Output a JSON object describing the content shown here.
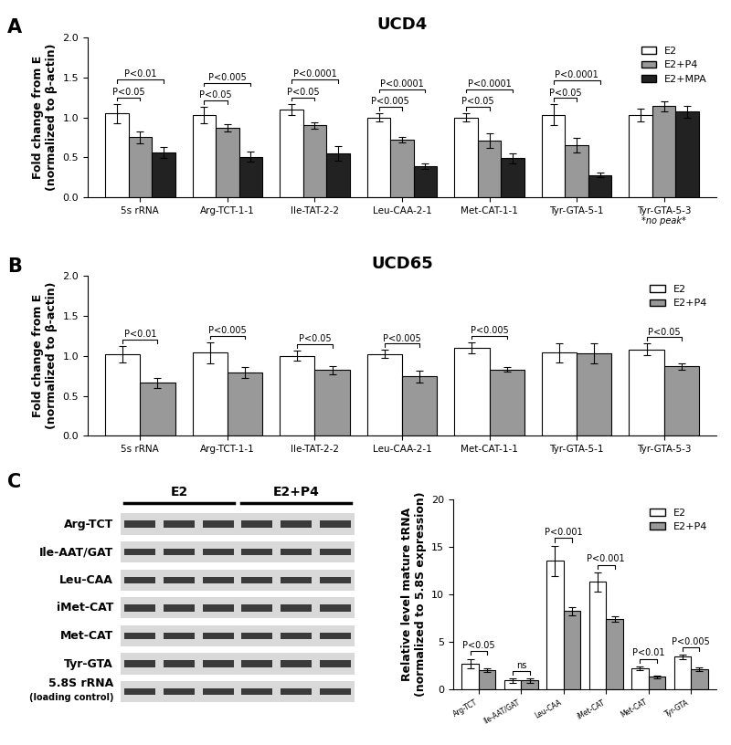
{
  "panel_labels": [
    "A",
    "B",
    "C"
  ],
  "chart_data": [
    {
      "type": "bar",
      "title": "UCD4",
      "ylabel": "Fold change from E\n(normalized to β-actin)",
      "categories": [
        "5s rRNA",
        "Arg-TCT-1-1",
        "Ile-TAT-2-2",
        "Leu-CAA-2-1",
        "Met-CAT-1-1",
        "Tyr-GTA-5-1",
        "Tyr-GTA-5-3"
      ],
      "series": [
        {
          "name": "E2",
          "color": "#ffffff",
          "values": [
            1.05,
            1.03,
            1.1,
            1.0,
            1.0,
            1.03,
            1.03
          ],
          "errors": [
            0.12,
            0.1,
            0.07,
            0.05,
            0.05,
            0.13,
            0.08
          ]
        },
        {
          "name": "E2+P4",
          "color": "#999999",
          "values": [
            0.75,
            0.87,
            0.9,
            0.72,
            0.71,
            0.65,
            1.14
          ],
          "errors": [
            0.07,
            0.05,
            0.04,
            0.03,
            0.09,
            0.09,
            0.06
          ]
        },
        {
          "name": "E2+MPA",
          "color": "#222222",
          "values": [
            0.56,
            0.51,
            0.55,
            0.39,
            0.49,
            0.28,
            1.07
          ],
          "errors": [
            0.07,
            0.06,
            0.09,
            0.03,
            0.06,
            0.03,
            0.07
          ]
        }
      ],
      "ylim": [
        0,
        2.0
      ],
      "yticks": [
        {
          "value": 0,
          "label": "0.0"
        },
        {
          "value": 0.5,
          "label": "0.5"
        },
        {
          "value": 1.0,
          "label": "1.0"
        },
        {
          "value": 1.5,
          "label": "1.5"
        },
        {
          "value": 2.0,
          "label": "2.0"
        }
      ],
      "legend": "upper right",
      "annotations": [
        {
          "category": "5s rRNA",
          "from": "E2",
          "to": "E2+P4",
          "text": "P<0.05"
        },
        {
          "category": "5s rRNA",
          "from": "E2",
          "to": "E2+MPA",
          "text": "P<0.01"
        },
        {
          "category": "Arg-TCT-1-1",
          "from": "E2",
          "to": "E2+P4",
          "text": "P<0.05"
        },
        {
          "category": "Arg-TCT-1-1",
          "from": "E2",
          "to": "E2+MPA",
          "text": "P<0.005"
        },
        {
          "category": "Ile-TAT-2-2",
          "from": "E2",
          "to": "E2+P4",
          "text": "P<0.05"
        },
        {
          "category": "Ile-TAT-2-2",
          "from": "E2",
          "to": "E2+MPA",
          "text": "P<0.0001"
        },
        {
          "category": "Leu-CAA-2-1",
          "from": "E2",
          "to": "E2+P4",
          "text": "P<0.005"
        },
        {
          "category": "Leu-CAA-2-1",
          "from": "E2",
          "to": "E2+MPA",
          "text": "P<0.0001"
        },
        {
          "category": "Met-CAT-1-1",
          "from": "E2",
          "to": "E2+P4",
          "text": "P<0.05"
        },
        {
          "category": "Met-CAT-1-1",
          "from": "E2",
          "to": "E2+MPA",
          "text": "P<0.0001"
        },
        {
          "category": "Tyr-GTA-5-1",
          "from": "E2",
          "to": "E2+P4",
          "text": "P<0.05"
        },
        {
          "category": "Tyr-GTA-5-1",
          "from": "E2",
          "to": "E2+MPA",
          "text": "P<0.0001"
        }
      ],
      "notes": [
        {
          "category": "Tyr-GTA-5-3",
          "text": "*no peak*"
        }
      ]
    },
    {
      "type": "bar",
      "title": "UCD65",
      "ylabel": "Fold change from E\n(normalized to β-actin)",
      "categories": [
        "5s rRNA",
        "Arg-TCT-1-1",
        "Ile-TAT-2-2",
        "Leu-CAA-2-1",
        "Met-CAT-1-1",
        "Tyr-GTA-5-1",
        "Tyr-GTA-5-3"
      ],
      "series": [
        {
          "name": "E2",
          "color": "#ffffff",
          "values": [
            1.02,
            1.04,
            1.0,
            1.02,
            1.1,
            1.04,
            1.08
          ],
          "errors": [
            0.1,
            0.13,
            0.06,
            0.05,
            0.07,
            0.12,
            0.07
          ]
        },
        {
          "name": "E2+P4",
          "color": "#999999",
          "values": [
            0.66,
            0.79,
            0.82,
            0.74,
            0.83,
            1.03,
            0.87
          ],
          "errors": [
            0.06,
            0.07,
            0.05,
            0.07,
            0.03,
            0.12,
            0.04
          ]
        }
      ],
      "ylim": [
        0,
        2.0
      ],
      "yticks": [
        {
          "value": 0,
          "label": "0.0"
        },
        {
          "value": 0.5,
          "label": "0.5"
        },
        {
          "value": 1.0,
          "label": "1.0"
        },
        {
          "value": 1.5,
          "label": "1.5"
        },
        {
          "value": 2.0,
          "label": "2.0"
        }
      ],
      "legend": "upper right",
      "annotations": [
        {
          "category": "5s rRNA",
          "from": "E2",
          "to": "E2+P4",
          "text": "P<0.01"
        },
        {
          "category": "Arg-TCT-1-1",
          "from": "E2",
          "to": "E2+P4",
          "text": "P<0.005"
        },
        {
          "category": "Ile-TAT-2-2",
          "from": "E2",
          "to": "E2+P4",
          "text": "P<0.05"
        },
        {
          "category": "Leu-CAA-2-1",
          "from": "E2",
          "to": "E2+P4",
          "text": "P<0.005"
        },
        {
          "category": "Met-CAT-1-1",
          "from": "E2",
          "to": "E2+P4",
          "text": "P<0.005"
        },
        {
          "category": "Tyr-GTA-5-3",
          "from": "E2",
          "to": "E2+P4",
          "text": "P<0.05"
        }
      ]
    },
    {
      "type": "bar",
      "ylabel": "Relative level mature tRNA\n(normalized to 5.8S expression)",
      "categories": [
        "Arg-TCT",
        "Ile-AAT/GAT",
        "Leu-CAA",
        "iMet-CAT",
        "Met-CAT",
        "Tyr-GTA"
      ],
      "series": [
        {
          "name": "E2",
          "color": "#ffffff",
          "values": [
            2.7,
            0.9,
            13.5,
            11.3,
            2.2,
            3.4
          ],
          "errors": [
            0.5,
            0.2,
            1.6,
            1.0,
            0.2,
            0.2
          ]
        },
        {
          "name": "E2+P4",
          "color": "#999999",
          "values": [
            2.0,
            0.9,
            8.2,
            7.4,
            1.3,
            2.1
          ],
          "errors": [
            0.2,
            0.2,
            0.4,
            0.3,
            0.15,
            0.15
          ]
        }
      ],
      "ylim": [
        0,
        20
      ],
      "yticks": [
        0,
        5,
        10,
        15,
        20
      ],
      "legend": "upper right",
      "annotations": [
        {
          "category": "Arg-TCT",
          "from": "E2",
          "to": "E2+P4",
          "text": "P<0.05"
        },
        {
          "category": "Ile-AAT/GAT",
          "from": "E2",
          "to": "E2+P4",
          "text": "ns"
        },
        {
          "category": "Leu-CAA",
          "from": "E2",
          "to": "E2+P4",
          "text": "P<0.001"
        },
        {
          "category": "iMet-CAT",
          "from": "E2",
          "to": "E2+P4",
          "text": "P<0.001"
        },
        {
          "category": "Met-CAT",
          "from": "E2",
          "to": "E2+P4",
          "text": "P<0.01"
        },
        {
          "category": "Tyr-GTA",
          "from": "E2",
          "to": "E2+P4",
          "text": "P<0.005"
        }
      ]
    }
  ],
  "gel": {
    "groups": [
      "E2",
      "E2+P4"
    ],
    "rows": [
      "Arg-TCT",
      "Ile-AAT/GAT",
      "Leu-CAA",
      "iMet-CAT",
      "Met-CAT",
      "Tyr-GTA",
      "5.8S rRNA"
    ],
    "row_note": "(loading control)"
  }
}
